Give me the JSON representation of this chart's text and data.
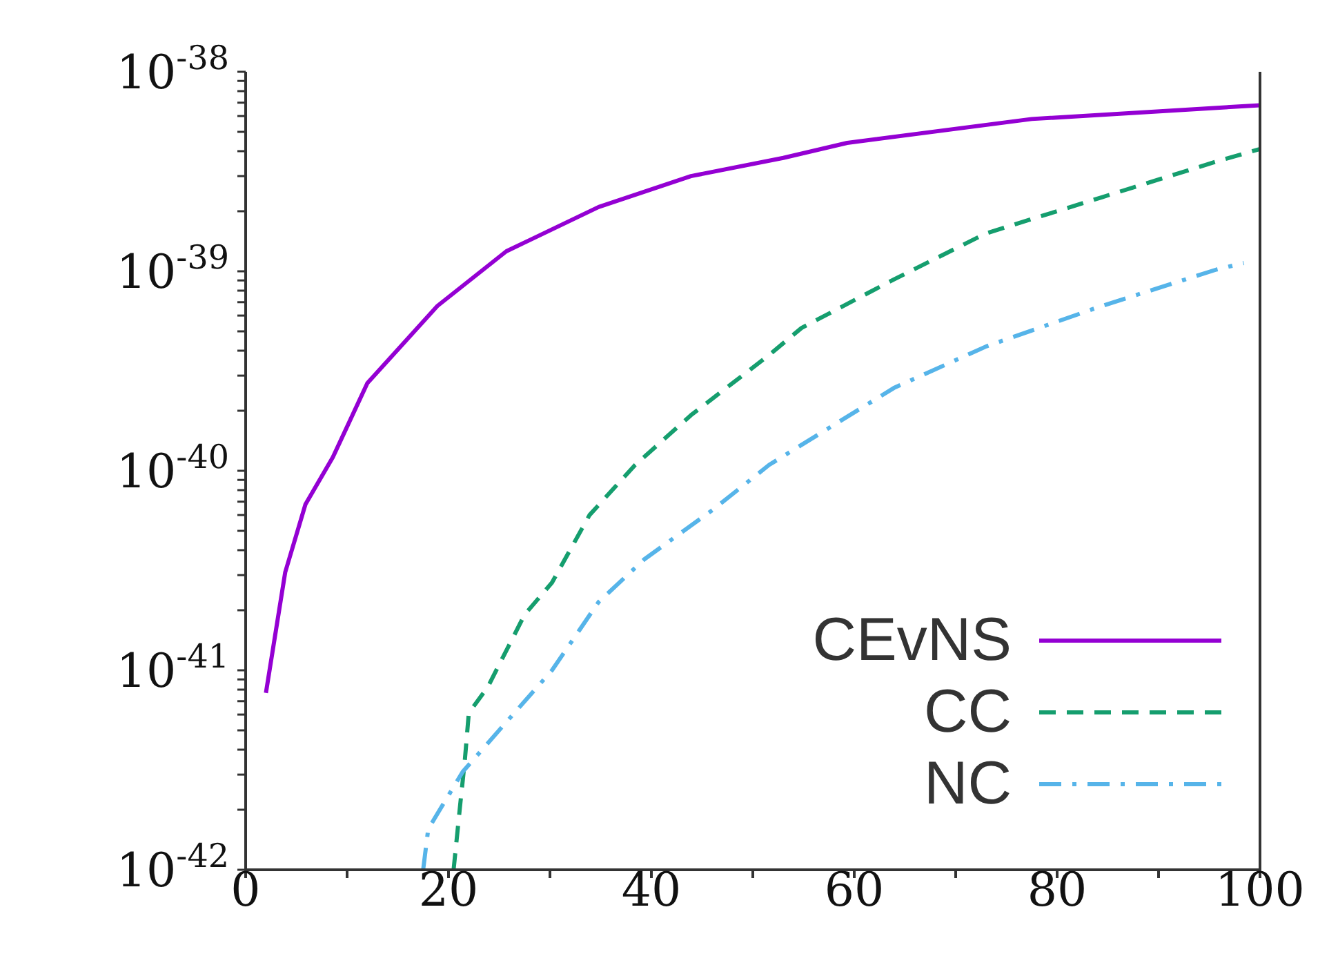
{
  "chart_data": {
    "type": "line",
    "log": "y",
    "legend": "bottom right",
    "grid": false,
    "xlim": [
      0,
      100
    ],
    "xticks": [
      0,
      {
        "value": 10,
        "label": null
      },
      20,
      {
        "value": 30,
        "label": null
      },
      40,
      {
        "value": 50,
        "label": null
      },
      60,
      {
        "value": 70,
        "label": null
      },
      80,
      {
        "value": 90,
        "label": null
      },
      100
    ],
    "ylim": [
      1e-42,
      1e-38
    ],
    "yticks": [
      {
        "value": 1e-42,
        "label": "10$^{-42}$"
      },
      {
        "value": 2e-42,
        "label": null
      },
      {
        "value": 3e-42,
        "label": null
      },
      {
        "value": 4e-42,
        "label": null
      },
      {
        "value": 5e-42,
        "label": null
      },
      {
        "value": 6e-42,
        "label": null
      },
      {
        "value": 7e-42,
        "label": null
      },
      {
        "value": 8e-42,
        "label": null
      },
      {
        "value": 9e-42,
        "label": null
      },
      {
        "value": 1e-41,
        "label": "10$^{-41}$"
      },
      {
        "value": 2e-41,
        "label": null
      },
      {
        "value": 3e-41,
        "label": null
      },
      {
        "value": 4e-41,
        "label": null
      },
      {
        "value": 5e-41,
        "label": null
      },
      {
        "value": 6e-41,
        "label": null
      },
      {
        "value": 7e-41,
        "label": null
      },
      {
        "value": 8e-41,
        "label": null
      },
      {
        "value": 9e-41,
        "label": null
      },
      {
        "value": 1e-40,
        "label": "10$^{-40}$"
      },
      {
        "value": 2e-40,
        "label": null
      },
      {
        "value": 3e-40,
        "label": null
      },
      {
        "value": 4e-40,
        "label": null
      },
      {
        "value": 5e-40,
        "label": null
      },
      {
        "value": 6e-40,
        "label": null
      },
      {
        "value": 7e-40,
        "label": null
      },
      {
        "value": 8e-40,
        "label": null
      },
      {
        "value": 9e-40,
        "label": null
      },
      {
        "value": 1e-39,
        "label": "10$^{-39}$"
      },
      {
        "value": 2e-39,
        "label": null
      },
      {
        "value": 3e-39,
        "label": null
      },
      {
        "value": 4e-39,
        "label": null
      },
      {
        "value": 5e-39,
        "label": null
      },
      {
        "value": 6e-39,
        "label": null
      },
      {
        "value": 7e-39,
        "label": null
      },
      {
        "value": 8e-39,
        "label": null
      },
      {
        "value": 9e-39,
        "label": null
      },
      {
        "value": 1e-38,
        "label": "10$^{-38}$"
      }
    ],
    "series": [
      {
        "name": "CEvNS",
        "color": "#9400d3",
        "line_style": "solid",
        "x": [
          2,
          3.9,
          5.9,
          8.6,
          12,
          18.9,
          25.7,
          34.8,
          43.9,
          53,
          59.3,
          77.5,
          100
        ],
        "values": [
          7.7e-42,
          3.1e-41,
          6.8e-41,
          1.17e-40,
          2.75e-40,
          6.7e-40,
          1.26e-39,
          2.1e-39,
          3e-39,
          3.7e-39,
          4.4e-39,
          5.8e-39,
          6.8e-39
        ]
      },
      {
        "name": "CC",
        "color": "#159e6e",
        "line_style": "dashed",
        "x": [
          20.5,
          21.1,
          21.6,
          22,
          23.9,
          27.5,
          30.2,
          33.9,
          38.4,
          43.9,
          51.6,
          54.8,
          63.9,
          73,
          84.4,
          95.7,
          100
        ],
        "values": [
          1e-42,
          2e-42,
          3.5e-42,
          6.1e-42,
          8.3e-42,
          1.9e-41,
          2.75e-41,
          6e-41,
          1.07e-40,
          1.9e-40,
          3.8e-40,
          5.2e-40,
          9.1e-40,
          1.55e-39,
          2.35e-39,
          3.55e-39,
          4.1e-39
        ]
      },
      {
        "name": "NC",
        "color": "#56b4e9",
        "line_style": "dashdot",
        "x": [
          17.5,
          18,
          18.6,
          21.4,
          25.7,
          30.2,
          34.8,
          39.3,
          46.1,
          51.6,
          63.9,
          73,
          84.4,
          95.7,
          98.4
        ],
        "values": [
          1e-42,
          1.6e-42,
          1.8e-42,
          3.1e-42,
          5.5e-42,
          1e-41,
          2.2e-41,
          3.6e-41,
          6.4e-41,
          1.07e-40,
          2.6e-40,
          4.2e-40,
          6.7e-40,
          1.02e-39,
          1.1e-39
        ]
      }
    ]
  }
}
